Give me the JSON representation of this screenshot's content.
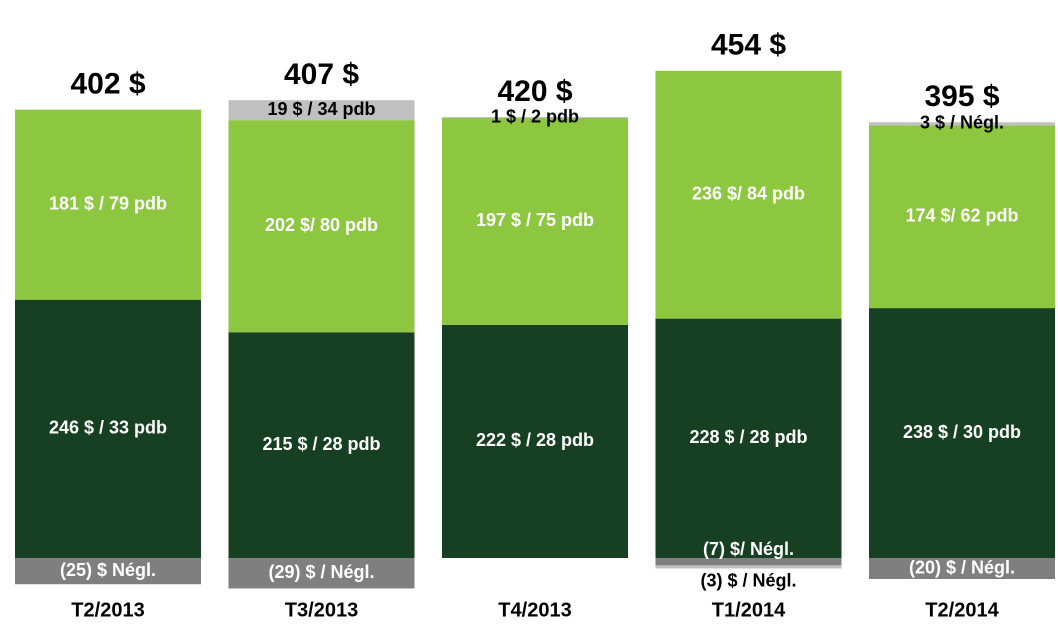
{
  "chart_data": {
    "type": "stacked-bar",
    "categories": [
      "T2/2013",
      "T3/2013",
      "T4/2013",
      "T1/2014",
      "T2/2014"
    ],
    "totals": [
      402,
      407,
      420,
      454,
      395
    ],
    "total_labels": [
      "402 $",
      "407 $",
      "420 $",
      "454 $",
      "395 $"
    ],
    "series": [
      {
        "color": "#173f22",
        "label_color": "#ffffff",
        "values": [
          246,
          215,
          222,
          228,
          238
        ],
        "value_labels": [
          "246 $ / 33 pdb",
          "215 $ / 28 pdb",
          "222 $ / 28 pdb",
          "228 $ / 28 pdb",
          "238 $ / 30 pdb"
        ]
      },
      {
        "color": "#8dc63f",
        "label_color": "#ffffff",
        "values": [
          181,
          202,
          197,
          236,
          174
        ],
        "value_labels": [
          "181 $ / 79 pdb",
          "202 $/ 80 pdb",
          "197 $ / 75 pdb",
          "236 $/ 84 pdb",
          "174 $/ 62 pdb"
        ]
      },
      {
        "color": "#c0c0c0",
        "label_color": "#000000",
        "values": [
          null,
          19,
          1,
          null,
          3
        ],
        "value_labels": [
          null,
          "19 $ / 34 pdb",
          "1 $ / 2 pdb",
          null,
          "3 $ / Négl."
        ]
      },
      {
        "color": "#7f7f7f",
        "label_color": "#ffffff",
        "values": [
          -25,
          -29,
          null,
          -7,
          -20
        ],
        "value_labels": [
          "(25) $ Négl.",
          "(29) $ / Négl.",
          null,
          "(7) $/ Négl.",
          "(20) $ / Négl."
        ]
      },
      {
        "color": "#c0c0c0",
        "label_color": "#000000",
        "values": [
          null,
          null,
          null,
          -3,
          null
        ],
        "value_labels": [
          null,
          null,
          null,
          "(3) $ / Négl.",
          null
        ]
      }
    ]
  }
}
